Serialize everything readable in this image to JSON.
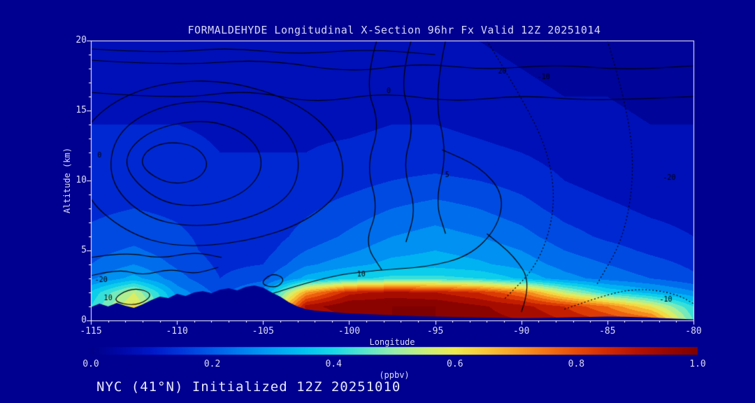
{
  "title": "FORMALDEHYDE Longitudinal X-Section 96hr  Fx Valid 12Z 20251014",
  "footer": "NYC (41°N) Initialized 12Z 20251010",
  "axes": {
    "x": {
      "label": "Longitude",
      "min": -115,
      "max": -80,
      "ticks": [
        -115,
        -110,
        -105,
        -100,
        -95,
        -90,
        -85,
        -80
      ]
    },
    "y": {
      "label": "Altitude (km)",
      "min": 0,
      "max": 20,
      "ticks": [
        0,
        5,
        10,
        15,
        20
      ]
    }
  },
  "colorbar": {
    "label": "(ppbv)",
    "min": 0.0,
    "max": 1.0,
    "ticks": [
      "0.0",
      "0.2",
      "0.4",
      "0.6",
      "0.8",
      "1.0"
    ],
    "stops": [
      {
        "v": 0.0,
        "color": "#000088"
      },
      {
        "v": 0.05,
        "color": "#0008a8"
      },
      {
        "v": 0.1,
        "color": "#0018c8"
      },
      {
        "v": 0.15,
        "color": "#0038dc"
      },
      {
        "v": 0.2,
        "color": "#005ce8"
      },
      {
        "v": 0.25,
        "color": "#0080f0"
      },
      {
        "v": 0.3,
        "color": "#00a2f4"
      },
      {
        "v": 0.35,
        "color": "#00c2f0"
      },
      {
        "v": 0.4,
        "color": "#18d8e6"
      },
      {
        "v": 0.45,
        "color": "#55e6cc"
      },
      {
        "v": 0.5,
        "color": "#96eeaa"
      },
      {
        "v": 0.55,
        "color": "#c8f07a"
      },
      {
        "v": 0.6,
        "color": "#eeea4e"
      },
      {
        "v": 0.65,
        "color": "#f8c838"
      },
      {
        "v": 0.7,
        "color": "#f8a024"
      },
      {
        "v": 0.75,
        "color": "#f47414"
      },
      {
        "v": 0.8,
        "color": "#e84c08"
      },
      {
        "v": 0.85,
        "color": "#d32a02"
      },
      {
        "v": 0.9,
        "color": "#b61200"
      },
      {
        "v": 0.95,
        "color": "#980600"
      },
      {
        "v": 1.0,
        "color": "#7e0000"
      }
    ]
  },
  "colors": {
    "background": "#000090",
    "axis": "#ffffff",
    "text": "#dcdcf8",
    "contour": "#000000"
  },
  "chart_data": {
    "type": "heatmap",
    "title": "FORMALDEHYDE Longitudinal X-Section 96hr  Fx Valid 12Z 20251014",
    "xlabel": "Longitude",
    "ylabel": "Altitude (km)",
    "units": "ppbv",
    "xlim": [
      -115,
      -80
    ],
    "ylim": [
      0,
      20
    ],
    "band_interval": 0.05,
    "x_lon": [
      -115,
      -112.5,
      -110,
      -107.5,
      -105,
      -102.5,
      -100,
      -97.5,
      -95,
      -92.5,
      -90,
      -87.5,
      -85,
      -82.5,
      -80
    ],
    "y_km": [
      0,
      1,
      2,
      3,
      4,
      5,
      6,
      8,
      10,
      12,
      14,
      16,
      18,
      20
    ],
    "values_ppbv": [
      [
        0.35,
        0.5,
        0.3,
        0.2,
        0.3,
        0.85,
        0.95,
        1.0,
        1.0,
        0.97,
        0.95,
        0.9,
        0.85,
        0.8,
        0.45
      ],
      [
        0.4,
        0.62,
        0.32,
        0.22,
        0.35,
        0.92,
        1.0,
        1.0,
        1.0,
        0.96,
        0.92,
        0.85,
        0.75,
        0.6,
        0.4
      ],
      [
        0.36,
        0.55,
        0.28,
        0.18,
        0.28,
        0.7,
        0.88,
        0.92,
        0.9,
        0.85,
        0.75,
        0.55,
        0.4,
        0.33,
        0.26
      ],
      [
        0.24,
        0.32,
        0.22,
        0.15,
        0.18,
        0.32,
        0.38,
        0.42,
        0.42,
        0.4,
        0.34,
        0.27,
        0.23,
        0.2,
        0.16
      ],
      [
        0.2,
        0.25,
        0.19,
        0.14,
        0.15,
        0.24,
        0.28,
        0.32,
        0.33,
        0.31,
        0.28,
        0.23,
        0.2,
        0.17,
        0.14
      ],
      [
        0.18,
        0.21,
        0.17,
        0.13,
        0.13,
        0.2,
        0.24,
        0.28,
        0.3,
        0.28,
        0.25,
        0.2,
        0.17,
        0.14,
        0.12
      ],
      [
        0.16,
        0.18,
        0.16,
        0.13,
        0.12,
        0.17,
        0.21,
        0.25,
        0.27,
        0.25,
        0.22,
        0.17,
        0.14,
        0.12,
        0.1
      ],
      [
        0.14,
        0.15,
        0.14,
        0.12,
        0.11,
        0.14,
        0.17,
        0.2,
        0.22,
        0.2,
        0.17,
        0.13,
        0.11,
        0.09,
        0.08
      ],
      [
        0.13,
        0.14,
        0.13,
        0.11,
        0.1,
        0.12,
        0.13,
        0.15,
        0.16,
        0.15,
        0.13,
        0.1,
        0.08,
        0.07,
        0.07
      ],
      [
        0.12,
        0.12,
        0.12,
        0.1,
        0.1,
        0.1,
        0.11,
        0.12,
        0.12,
        0.11,
        0.1,
        0.08,
        0.07,
        0.06,
        0.06
      ],
      [
        0.1,
        0.1,
        0.1,
        0.09,
        0.09,
        0.09,
        0.09,
        0.1,
        0.1,
        0.09,
        0.08,
        0.07,
        0.06,
        0.05,
        0.05
      ],
      [
        0.08,
        0.08,
        0.08,
        0.08,
        0.08,
        0.08,
        0.08,
        0.08,
        0.08,
        0.07,
        0.06,
        0.05,
        0.05,
        0.04,
        0.04
      ],
      [
        0.06,
        0.06,
        0.06,
        0.07,
        0.07,
        0.07,
        0.07,
        0.06,
        0.06,
        0.06,
        0.05,
        0.04,
        0.04,
        0.03,
        0.03
      ],
      [
        0.05,
        0.05,
        0.05,
        0.06,
        0.06,
        0.06,
        0.06,
        0.05,
        0.05,
        0.05,
        0.04,
        0.03,
        0.03,
        0.03,
        0.03
      ]
    ],
    "terrain_km": [
      [
        -115,
        0.95
      ],
      [
        -114.5,
        1.2
      ],
      [
        -114,
        1.0
      ],
      [
        -113.5,
        1.25
      ],
      [
        -113,
        1.05
      ],
      [
        -112.5,
        0.9
      ],
      [
        -112,
        1.15
      ],
      [
        -111.5,
        1.45
      ],
      [
        -111,
        1.7
      ],
      [
        -110.5,
        1.6
      ],
      [
        -110,
        1.9
      ],
      [
        -109.5,
        1.75
      ],
      [
        -109,
        2.0
      ],
      [
        -108.5,
        2.1
      ],
      [
        -108,
        1.95
      ],
      [
        -107.5,
        2.2
      ],
      [
        -107,
        2.3
      ],
      [
        -106.5,
        2.15
      ],
      [
        -106,
        2.4
      ],
      [
        -105.5,
        2.5
      ],
      [
        -105,
        2.35
      ],
      [
        -104.5,
        2.0
      ],
      [
        -104,
        1.7
      ],
      [
        -103.5,
        1.3
      ],
      [
        -103,
        1.0
      ],
      [
        -102.5,
        0.8
      ],
      [
        -102,
        0.7
      ],
      [
        -101,
        0.6
      ],
      [
        -100,
        0.5
      ],
      [
        -99,
        0.45
      ],
      [
        -98,
        0.4
      ],
      [
        -97,
        0.35
      ],
      [
        -96,
        0.3
      ],
      [
        -95,
        0.28
      ],
      [
        -94,
        0.25
      ],
      [
        -93,
        0.22
      ],
      [
        -92,
        0.2
      ],
      [
        -91,
        0.18
      ],
      [
        -90,
        0.16
      ],
      [
        -89,
        0.18
      ],
      [
        -88,
        0.2
      ],
      [
        -87,
        0.22
      ],
      [
        -86,
        0.25
      ],
      [
        -85,
        0.28
      ],
      [
        -84,
        0.26
      ],
      [
        -83,
        0.22
      ],
      [
        -82,
        0.18
      ],
      [
        -81,
        0.12
      ],
      [
        -80,
        0.08
      ]
    ],
    "contour_overlay": {
      "line_color": "#000000",
      "contours": [
        {
          "style": "solid",
          "closed": true,
          "points": [
            [
              -115.5,
              9
            ],
            [
              -113,
              6.3
            ],
            [
              -110,
              5.2
            ],
            [
              -106,
              5.6
            ],
            [
              -102.5,
              7
            ],
            [
              -100.2,
              9.5
            ],
            [
              -100.6,
              13
            ],
            [
              -103,
              15.6
            ],
            [
              -107,
              17.2
            ],
            [
              -111,
              17
            ],
            [
              -114,
              15.5
            ],
            [
              -115.8,
              13
            ]
          ]
        },
        {
          "style": "solid",
          "closed": true,
          "points": [
            [
              -114,
              10
            ],
            [
              -112,
              7.4
            ],
            [
              -109,
              6.6
            ],
            [
              -105.6,
              7.3
            ],
            [
              -103.2,
              9
            ],
            [
              -102.8,
              12
            ],
            [
              -104.2,
              14.4
            ],
            [
              -107.5,
              15.8
            ],
            [
              -111,
              15.4
            ],
            [
              -113.6,
              13.4
            ]
          ]
        },
        {
          "style": "solid",
          "closed": true,
          "points": [
            [
              -113,
              10.6
            ],
            [
              -111,
              8.4
            ],
            [
              -108.4,
              8.1
            ],
            [
              -106,
              9.1
            ],
            [
              -104.9,
              11
            ],
            [
              -105.6,
              13.1
            ],
            [
              -108,
              14.4
            ],
            [
              -111,
              13.9
            ],
            [
              -112.8,
              12.4
            ]
          ]
        },
        {
          "style": "solid",
          "closed": true,
          "points": [
            [
              -112.1,
              10.9
            ],
            [
              -110.5,
              9.7
            ],
            [
              -108.8,
              10
            ],
            [
              -108.1,
              11.2
            ],
            [
              -108.9,
              12.5
            ],
            [
              -110.6,
              12.8
            ],
            [
              -111.9,
              12.1
            ]
          ]
        },
        {
          "style": "solid",
          "points": [
            [
              -115,
              18.6
            ],
            [
              -110,
              18.2
            ],
            [
              -105,
              18.7
            ],
            [
              -100,
              17.7
            ],
            [
              -96,
              18.4
            ],
            [
              -92,
              17.9
            ],
            [
              -88,
              18.3
            ],
            [
              -84,
              17.9
            ],
            [
              -80,
              18.2
            ]
          ]
        },
        {
          "style": "solid",
          "points": [
            [
              -115,
              16.3
            ],
            [
              -110,
              15.8
            ],
            [
              -106,
              16.5
            ],
            [
              -102,
              15.5
            ],
            [
              -98,
              16.3
            ],
            [
              -94,
              15.6
            ],
            [
              -90,
              16.1
            ],
            [
              -86,
              15.7
            ],
            [
              -80,
              16.0
            ]
          ]
        },
        {
          "style": "solid",
          "points": [
            [
              -115,
              19.4
            ],
            [
              -111,
              19.1
            ],
            [
              -107,
              19.5
            ],
            [
              -103,
              19.0
            ],
            [
              -99,
              19.4
            ],
            [
              -95,
              19.0
            ]
          ]
        },
        {
          "style": "solid",
          "points": [
            [
              -98.4,
              20
            ],
            [
              -99.1,
              17
            ],
            [
              -98.2,
              14
            ],
            [
              -99,
              11
            ],
            [
              -98.3,
              8
            ],
            [
              -99.1,
              5.5
            ],
            [
              -98.1,
              3.6
            ]
          ]
        },
        {
          "style": "solid",
          "points": [
            [
              -96.4,
              20
            ],
            [
              -97.1,
              17
            ],
            [
              -96.2,
              14
            ],
            [
              -96.9,
              11
            ],
            [
              -96.1,
              8
            ],
            [
              -96.7,
              5.6
            ]
          ]
        },
        {
          "style": "solid",
          "points": [
            [
              -94.4,
              20
            ],
            [
              -95.1,
              16
            ],
            [
              -94.3,
              12
            ],
            [
              -95,
              8.5
            ],
            [
              -94.4,
              6.2
            ]
          ]
        },
        {
          "style": "solid",
          "points": [
            [
              -104.5,
              1.9
            ],
            [
              -101.5,
              3.1
            ],
            [
              -98.5,
              3.6
            ],
            [
              -95.5,
              3.8
            ],
            [
              -93,
              4.6
            ],
            [
              -91.4,
              6.6
            ],
            [
              -91,
              9
            ],
            [
              -92.4,
              11
            ],
            [
              -94.6,
              12.2
            ]
          ]
        },
        {
          "style": "solid",
          "closed": true,
          "points": [
            [
              -105.2,
              2.6
            ],
            [
              -104.5,
              3.4
            ],
            [
              -103.7,
              3.0
            ],
            [
              -104.2,
              2.3
            ]
          ]
        },
        {
          "style": "solid",
          "points": [
            [
              -90,
              0.6
            ],
            [
              -89.4,
              2.6
            ],
            [
              -90.4,
              4.6
            ],
            [
              -92,
              6.2
            ]
          ]
        },
        {
          "style": "dotted",
          "points": [
            [
              -92,
              20
            ],
            [
              -90,
              16
            ],
            [
              -88.4,
              12
            ],
            [
              -88,
              8
            ],
            [
              -89,
              4
            ],
            [
              -91,
              1.5
            ]
          ]
        },
        {
          "style": "dotted",
          "points": [
            [
              -85,
              20
            ],
            [
              -84,
              16
            ],
            [
              -83.4,
              11
            ],
            [
              -84,
              6
            ],
            [
              -85.6,
              2.6
            ]
          ]
        },
        {
          "style": "dotted",
          "points": [
            [
              -87.5,
              0.8
            ],
            [
              -85,
              1.9
            ],
            [
              -83,
              2.3
            ],
            [
              -81,
              1.9
            ],
            [
              -80,
              1.2
            ]
          ]
        },
        {
          "style": "solid",
          "points": [
            [
              -115,
              3.2
            ],
            [
              -113.4,
              3.7
            ],
            [
              -112,
              3.2
            ],
            [
              -110.4,
              3.7
            ],
            [
              -109,
              3.3
            ],
            [
              -107.6,
              3.8
            ]
          ]
        },
        {
          "style": "solid",
          "points": [
            [
              -115,
              4.5
            ],
            [
              -113,
              4.9
            ],
            [
              -111,
              4.4
            ],
            [
              -109,
              4.9
            ],
            [
              -107.4,
              4.5
            ]
          ]
        },
        {
          "style": "solid",
          "closed": true,
          "points": [
            [
              -113.9,
              1.4
            ],
            [
              -112.6,
              2.4
            ],
            [
              -111.3,
              1.9
            ],
            [
              -112.3,
              1.0
            ]
          ]
        }
      ],
      "labels": [
        {
          "text": "-20",
          "lon": -114.4,
          "alt": 2.9
        },
        {
          "text": "10",
          "lon": -114.0,
          "alt": 1.6
        },
        {
          "text": "0",
          "lon": -114.5,
          "alt": 11.8
        },
        {
          "text": "10",
          "lon": -99.3,
          "alt": 3.3
        },
        {
          "text": "0",
          "lon": -97.7,
          "alt": 16.4
        },
        {
          "text": "5",
          "lon": -94.3,
          "alt": 10.4
        },
        {
          "text": "20",
          "lon": -91.1,
          "alt": 17.8
        },
        {
          "text": "-10",
          "lon": -88.7,
          "alt": 17.4
        },
        {
          "text": "-20",
          "lon": -81.4,
          "alt": 10.2
        },
        {
          "text": "-10",
          "lon": -81.6,
          "alt": 1.5
        }
      ]
    }
  }
}
